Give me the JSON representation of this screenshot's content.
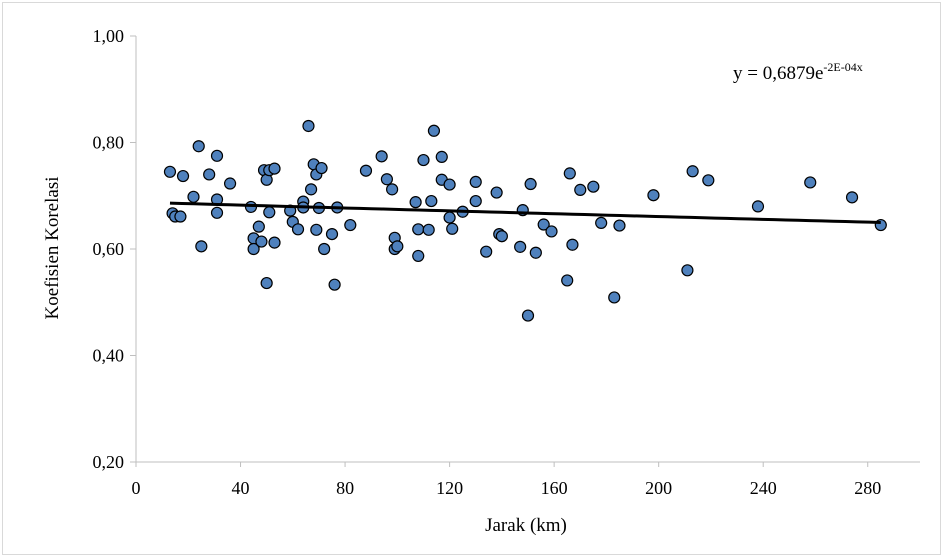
{
  "chart_data": {
    "type": "scatter",
    "xlabel": "Jarak (km)",
    "ylabel": "Koefisien Korelasi",
    "xlim": [
      0,
      300
    ],
    "ylim": [
      0.2,
      1.0
    ],
    "x_ticks": [
      0,
      40,
      80,
      120,
      160,
      200,
      240,
      280
    ],
    "x_tick_labels": [
      "0",
      "40",
      "80",
      "120",
      "160",
      "200",
      "240",
      "280"
    ],
    "y_ticks": [
      0.2,
      0.4,
      0.6,
      0.8,
      1.0
    ],
    "y_tick_labels": [
      "0,20",
      "0,40",
      "0,60",
      "0,80",
      "1,00"
    ],
    "grid": false,
    "marker_color": "#4f81bd",
    "marker_edge_color": "#000000",
    "trendline": {
      "type": "exponential",
      "a": 0.6879,
      "b": -0.0002,
      "x_range": [
        13,
        285
      ],
      "color": "#000000",
      "label_base": "y = 0,6879e",
      "label_exponent": "-2E-04x"
    },
    "points": [
      {
        "x": 13,
        "y": 0.745
      },
      {
        "x": 14,
        "y": 0.667
      },
      {
        "x": 15,
        "y": 0.661
      },
      {
        "x": 17,
        "y": 0.661
      },
      {
        "x": 18,
        "y": 0.737
      },
      {
        "x": 22,
        "y": 0.698
      },
      {
        "x": 24,
        "y": 0.793
      },
      {
        "x": 25,
        "y": 0.605
      },
      {
        "x": 28,
        "y": 0.74
      },
      {
        "x": 31,
        "y": 0.775
      },
      {
        "x": 31,
        "y": 0.693
      },
      {
        "x": 31,
        "y": 0.668
      },
      {
        "x": 36,
        "y": 0.723
      },
      {
        "x": 44,
        "y": 0.679
      },
      {
        "x": 45,
        "y": 0.62
      },
      {
        "x": 45,
        "y": 0.6
      },
      {
        "x": 47,
        "y": 0.642
      },
      {
        "x": 48,
        "y": 0.614
      },
      {
        "x": 49,
        "y": 0.748
      },
      {
        "x": 50,
        "y": 0.73
      },
      {
        "x": 50,
        "y": 0.536
      },
      {
        "x": 51,
        "y": 0.669
      },
      {
        "x": 51,
        "y": 0.748
      },
      {
        "x": 53,
        "y": 0.751
      },
      {
        "x": 53,
        "y": 0.612
      },
      {
        "x": 59,
        "y": 0.672
      },
      {
        "x": 60,
        "y": 0.651
      },
      {
        "x": 62,
        "y": 0.637
      },
      {
        "x": 64,
        "y": 0.689
      },
      {
        "x": 64,
        "y": 0.678
      },
      {
        "x": 66,
        "y": 0.831
      },
      {
        "x": 67,
        "y": 0.712
      },
      {
        "x": 68,
        "y": 0.759
      },
      {
        "x": 69,
        "y": 0.74
      },
      {
        "x": 69,
        "y": 0.636
      },
      {
        "x": 70,
        "y": 0.677
      },
      {
        "x": 71,
        "y": 0.752
      },
      {
        "x": 72,
        "y": 0.6
      },
      {
        "x": 75,
        "y": 0.628
      },
      {
        "x": 76,
        "y": 0.533
      },
      {
        "x": 77,
        "y": 0.678
      },
      {
        "x": 82,
        "y": 0.645
      },
      {
        "x": 88,
        "y": 0.747
      },
      {
        "x": 94,
        "y": 0.774
      },
      {
        "x": 96,
        "y": 0.731
      },
      {
        "x": 98,
        "y": 0.712
      },
      {
        "x": 99,
        "y": 0.621
      },
      {
        "x": 99,
        "y": 0.6
      },
      {
        "x": 100,
        "y": 0.605
      },
      {
        "x": 107,
        "y": 0.688
      },
      {
        "x": 108,
        "y": 0.637
      },
      {
        "x": 108,
        "y": 0.587
      },
      {
        "x": 110,
        "y": 0.767
      },
      {
        "x": 112,
        "y": 0.636
      },
      {
        "x": 113,
        "y": 0.69
      },
      {
        "x": 114,
        "y": 0.822
      },
      {
        "x": 117,
        "y": 0.773
      },
      {
        "x": 117,
        "y": 0.73
      },
      {
        "x": 120,
        "y": 0.659
      },
      {
        "x": 120,
        "y": 0.721
      },
      {
        "x": 121,
        "y": 0.638
      },
      {
        "x": 125,
        "y": 0.67
      },
      {
        "x": 130,
        "y": 0.69
      },
      {
        "x": 130,
        "y": 0.726
      },
      {
        "x": 134,
        "y": 0.595
      },
      {
        "x": 138,
        "y": 0.706
      },
      {
        "x": 139,
        "y": 0.628
      },
      {
        "x": 140,
        "y": 0.624
      },
      {
        "x": 147,
        "y": 0.604
      },
      {
        "x": 148,
        "y": 0.673
      },
      {
        "x": 150,
        "y": 0.475
      },
      {
        "x": 151,
        "y": 0.722
      },
      {
        "x": 153,
        "y": 0.593
      },
      {
        "x": 156,
        "y": 0.646
      },
      {
        "x": 159,
        "y": 0.633
      },
      {
        "x": 165,
        "y": 0.541
      },
      {
        "x": 166,
        "y": 0.742
      },
      {
        "x": 167,
        "y": 0.608
      },
      {
        "x": 170,
        "y": 0.711
      },
      {
        "x": 175,
        "y": 0.717
      },
      {
        "x": 178,
        "y": 0.649
      },
      {
        "x": 183,
        "y": 0.509
      },
      {
        "x": 185,
        "y": 0.644
      },
      {
        "x": 198,
        "y": 0.701
      },
      {
        "x": 211,
        "y": 0.56
      },
      {
        "x": 213,
        "y": 0.746
      },
      {
        "x": 219,
        "y": 0.729
      },
      {
        "x": 238,
        "y": 0.68
      },
      {
        "x": 258,
        "y": 0.725
      },
      {
        "x": 274,
        "y": 0.697
      },
      {
        "x": 285,
        "y": 0.645
      }
    ]
  }
}
